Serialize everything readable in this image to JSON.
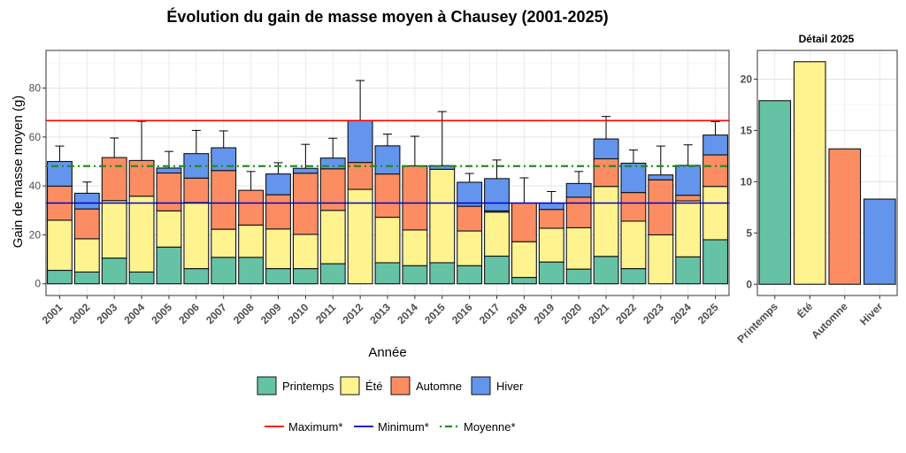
{
  "chart_data": [
    {
      "type": "bar",
      "stacked": true,
      "title": "Évolution du gain de masse moyen à Chausey (2001-2025)",
      "xlabel": "Année",
      "ylabel": "Gain de masse moyen (g)",
      "ylim": [
        -4.8,
        95.4
      ],
      "yticks": [
        "0",
        "20",
        "40",
        "60",
        "80"
      ],
      "grid": true,
      "categories": [
        "2001",
        "2002",
        "2003",
        "2004",
        "2005",
        "2006",
        "2007",
        "2008",
        "2009",
        "2010",
        "2011",
        "2012",
        "2013",
        "2014",
        "2015",
        "2016",
        "2017",
        "2018",
        "2019",
        "2020",
        "2021",
        "2022",
        "2023",
        "2024",
        "2025"
      ],
      "series": [
        {
          "name": "Printemps",
          "color": "#66c2a5",
          "values": [
            5.5,
            4.8,
            10.5,
            4.8,
            15.0,
            6.2,
            10.8,
            10.8,
            6.2,
            6.2,
            8.2,
            0,
            8.6,
            7.4,
            8.6,
            7.4,
            11.3,
            2.6,
            8.9,
            6.0,
            11.2,
            6.2,
            0,
            11.0,
            18.0
          ]
        },
        {
          "name": "Été",
          "color": "#fff38f",
          "values": [
            20.5,
            13.6,
            23.5,
            31.0,
            14.8,
            27.0,
            11.5,
            13.2,
            16.2,
            14.0,
            21.8,
            38.6,
            18.6,
            14.6,
            38.2,
            14.2,
            18.0,
            14.6,
            13.8,
            16.9,
            28.6,
            19.4,
            20.0,
            22.9,
            21.8
          ]
        },
        {
          "name": "Automne",
          "color": "#fc8d62",
          "values": [
            13.9,
            12.2,
            17.6,
            14.6,
            15.5,
            10.0,
            24.0,
            14.2,
            14.0,
            25.0,
            17.0,
            11.0,
            17.7,
            26.2,
            0,
            10.1,
            0.5,
            15.8,
            7.7,
            12.5,
            11.3,
            11.7,
            22.5,
            2.3,
            12.9
          ]
        },
        {
          "name": "Hiver",
          "color": "#6495ed",
          "values": [
            10.1,
            6.4,
            0,
            0,
            2.0,
            10.0,
            9.3,
            0,
            8.5,
            2.0,
            4.4,
            17.1,
            11.5,
            0,
            1.5,
            9.8,
            13.2,
            0,
            2.6,
            5.6,
            8.1,
            12.0,
            2.0,
            12.2,
            8.1
          ]
        }
      ],
      "error_bar_tops": [
        56.3,
        41.6,
        59.6,
        66.4,
        54.1,
        62.7,
        62.5,
        45.9,
        49.5,
        57.0,
        59.5,
        83.1,
        61.2,
        60.3,
        70.4,
        45.1,
        50.6,
        43.3,
        37.7,
        45.9,
        68.4,
        54.7,
        56.3,
        56.8,
        66.3
      ],
      "reference_lines": [
        {
          "name": "Maximum*",
          "value": 66.7,
          "color": "#ff0000",
          "style": "solid"
        },
        {
          "name": "Minimum*",
          "value": 33.0,
          "color": "#0000cd",
          "style": "solid"
        },
        {
          "name": "Moyenne*",
          "value": 48.1,
          "color": "#228b22",
          "style": "dotdash"
        }
      ]
    },
    {
      "type": "bar",
      "title": "Détail 2025",
      "categories": [
        "Printemps",
        "Été",
        "Automne",
        "Hiver"
      ],
      "values": [
        17.9,
        21.7,
        13.2,
        8.3
      ],
      "colors": [
        "#66c2a5",
        "#fff38f",
        "#fc8d62",
        "#6495ed"
      ],
      "ylim": [
        -1.1,
        22.8
      ],
      "yticks": [
        "0",
        "5",
        "10",
        "15",
        "20"
      ],
      "grid": true
    }
  ],
  "legend": {
    "fill_items": [
      {
        "label": "Printemps",
        "color": "#66c2a5"
      },
      {
        "label": "Été",
        "color": "#fff38f"
      },
      {
        "label": "Automne",
        "color": "#fc8d62"
      },
      {
        "label": "Hiver",
        "color": "#6495ed"
      }
    ],
    "line_items": [
      {
        "label": "Maximum*",
        "color": "#ff0000",
        "style": "solid"
      },
      {
        "label": "Minimum*",
        "color": "#0000cd",
        "style": "solid"
      },
      {
        "label": "Moyenne*",
        "color": "#228b22",
        "style": "dotdash"
      }
    ]
  }
}
